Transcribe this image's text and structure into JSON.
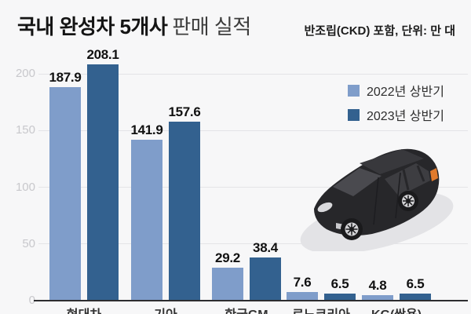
{
  "header": {
    "title_strong": "국내 완성차 5개사",
    "title_light": "판매 실적",
    "subtitle": "반조립(CKD) 포함, 단위: 만 대"
  },
  "legend": {
    "items": [
      {
        "label": "2022년 상반기",
        "color": "#7f9dca"
      },
      {
        "label": "2023년 상반기",
        "color": "#33618f"
      }
    ]
  },
  "chart_data": {
    "type": "bar",
    "title": "국내 완성차 5개사 판매 실적",
    "subtitle": "반조립(CKD) 포함, 단위: 만 대",
    "unit": "만 대",
    "categories": [
      "현대차",
      "기아",
      "한국GM",
      "르노코리아",
      "KG(쌍용)"
    ],
    "series": [
      {
        "name": "2022년 상반기",
        "color": "#7f9dca",
        "values": [
          187.9,
          141.9,
          29.2,
          7.6,
          4.8
        ]
      },
      {
        "name": "2023년 상반기",
        "color": "#33618f",
        "values": [
          208.1,
          157.6,
          38.4,
          6.5,
          6.5
        ]
      }
    ],
    "y_ticks": [
      0,
      50,
      100,
      150,
      200
    ],
    "ylim": [
      0,
      215
    ],
    "grid": true,
    "legend_position": "top-right",
    "decor": "black-isometric-minivan-illustration"
  },
  "colors": {
    "background": "#f7f7f8",
    "gridline": "#e4e4e7",
    "axis": "#2d2d30",
    "y_tick_text": "#c8c8cc",
    "value_text": "#111111",
    "category_text": "#333333"
  }
}
